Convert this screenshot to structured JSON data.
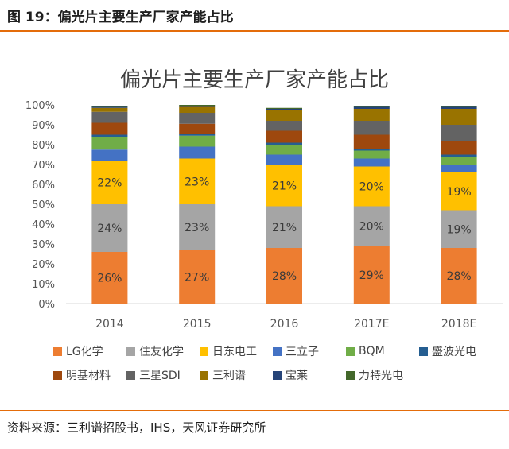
{
  "figure": {
    "title": "图 19：偏光片主要生产厂家产能占比",
    "source": "资料来源：三利谱招股书，IHS，天风证券研究所"
  },
  "chart_data": {
    "type": "bar",
    "stacked": true,
    "title": "偏光片主要生产厂家产能占比",
    "xlabel": "",
    "ylabel": "",
    "ylim": [
      0,
      1
    ],
    "y_tick_labels": [
      "0%",
      "10%",
      "20%",
      "30%",
      "40%",
      "50%",
      "60%",
      "70%",
      "80%",
      "90%",
      "100%"
    ],
    "grid": false,
    "legend_position": "bottom",
    "categories": [
      "2014",
      "2015",
      "2016",
      "2017E",
      "2018E"
    ],
    "series": [
      {
        "name": "LG化学",
        "color": "#ed7d31",
        "values": [
          0.26,
          0.27,
          0.28,
          0.29,
          0.28
        ],
        "labels": [
          "26%",
          "27%",
          "28%",
          "29%",
          "28%"
        ]
      },
      {
        "name": "住友化学",
        "color": "#a5a5a5",
        "values": [
          0.24,
          0.23,
          0.21,
          0.2,
          0.19
        ],
        "labels": [
          "24%",
          "23%",
          "21%",
          "20%",
          "19%"
        ]
      },
      {
        "name": "日东电工",
        "color": "#ffc000",
        "values": [
          0.22,
          0.23,
          0.21,
          0.2,
          0.19
        ],
        "labels": [
          "22%",
          "23%",
          "21%",
          "20%",
          "19%"
        ]
      },
      {
        "name": "三立子",
        "color": "#4472c4",
        "values": [
          0.055,
          0.06,
          0.05,
          0.04,
          0.04
        ]
      },
      {
        "name": "BQM",
        "color": "#70ad47",
        "values": [
          0.065,
          0.055,
          0.05,
          0.04,
          0.04
        ]
      },
      {
        "name": "盛波光电",
        "color": "#255e91",
        "values": [
          0.01,
          0.01,
          0.01,
          0.01,
          0.01
        ]
      },
      {
        "name": "明基材料",
        "color": "#9e480e",
        "values": [
          0.06,
          0.05,
          0.06,
          0.07,
          0.07
        ]
      },
      {
        "name": "三星SDI",
        "color": "#636363",
        "values": [
          0.055,
          0.055,
          0.05,
          0.07,
          0.08
        ]
      },
      {
        "name": "三利谱",
        "color": "#997300",
        "values": [
          0.02,
          0.03,
          0.055,
          0.06,
          0.08
        ]
      },
      {
        "name": "宝莱",
        "color": "#264478",
        "values": [
          0.005,
          0.005,
          0.005,
          0.01,
          0.01
        ]
      },
      {
        "name": "力特光电",
        "color": "#43682b",
        "values": [
          0.005,
          0.005,
          0.005,
          0.005,
          0.005
        ]
      }
    ]
  }
}
